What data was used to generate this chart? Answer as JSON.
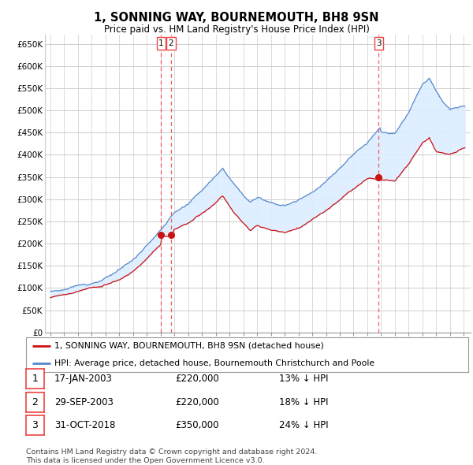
{
  "title": "1, SONNING WAY, BOURNEMOUTH, BH8 9SN",
  "subtitle": "Price paid vs. HM Land Registry's House Price Index (HPI)",
  "legend_line1": "1, SONNING WAY, BOURNEMOUTH, BH8 9SN (detached house)",
  "legend_line2": "HPI: Average price, detached house, Bournemouth Christchurch and Poole",
  "footer1": "Contains HM Land Registry data © Crown copyright and database right 2024.",
  "footer2": "This data is licensed under the Open Government Licence v3.0.",
  "transactions": [
    {
      "num": 1,
      "date": "17-JAN-2003",
      "price": "£220,000",
      "pct": "13% ↓ HPI"
    },
    {
      "num": 2,
      "date": "29-SEP-2003",
      "price": "£220,000",
      "pct": "18% ↓ HPI"
    },
    {
      "num": 3,
      "date": "31-OCT-2018",
      "price": "£350,000",
      "pct": "24% ↓ HPI"
    }
  ],
  "sale_dates_num": [
    2003.04,
    2003.75,
    2018.83
  ],
  "sale_prices": [
    220000,
    220000,
    350000
  ],
  "hpi_color": "#5588cc",
  "sale_color": "#cc1111",
  "vline_color": "#ee4444",
  "fill_color": "#ddeeff",
  "grid_color": "#cccccc",
  "bg_color": "#ffffff",
  "ylim_top": 670000,
  "yticks": [
    0,
    50000,
    100000,
    150000,
    200000,
    250000,
    300000,
    350000,
    400000,
    450000,
    500000,
    550000,
    600000,
    650000
  ],
  "xlim_start": 1994.6,
  "xlim_end": 2025.5
}
